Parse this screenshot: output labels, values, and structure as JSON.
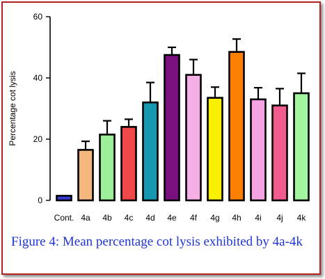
{
  "chart_data": {
    "type": "bar",
    "title": "",
    "xlabel": "",
    "ylabel": "Percentage cot lysis",
    "ylim": [
      0,
      60
    ],
    "yticks": [
      0,
      20,
      40,
      60
    ],
    "categories": [
      "Cont.",
      "4a",
      "4b",
      "4c",
      "4d",
      "4e",
      "4f",
      "4g",
      "4h",
      "4i",
      "4j",
      "4k"
    ],
    "values": [
      1.5,
      16.5,
      21.5,
      24,
      32,
      47.5,
      41,
      33.5,
      48.5,
      33,
      31,
      35
    ],
    "errors": [
      0.3,
      2.8,
      4.5,
      2.5,
      6.5,
      2.5,
      5,
      3.5,
      4.2,
      3.8,
      5.5,
      6.5
    ],
    "bar_colors": [
      "#3b3bd6",
      "#f4b77d",
      "#9cf09a",
      "#f04848",
      "#1597b0",
      "#7a0f7e",
      "#f5aee6",
      "#f8f000",
      "#ff7f00",
      "#f5a3e2",
      "#f25c8c",
      "#a3f5a0"
    ],
    "grid": false,
    "legend": "none"
  },
  "caption": "Figure 4: Mean percentage cot lysis exhibited by 4a-4k"
}
